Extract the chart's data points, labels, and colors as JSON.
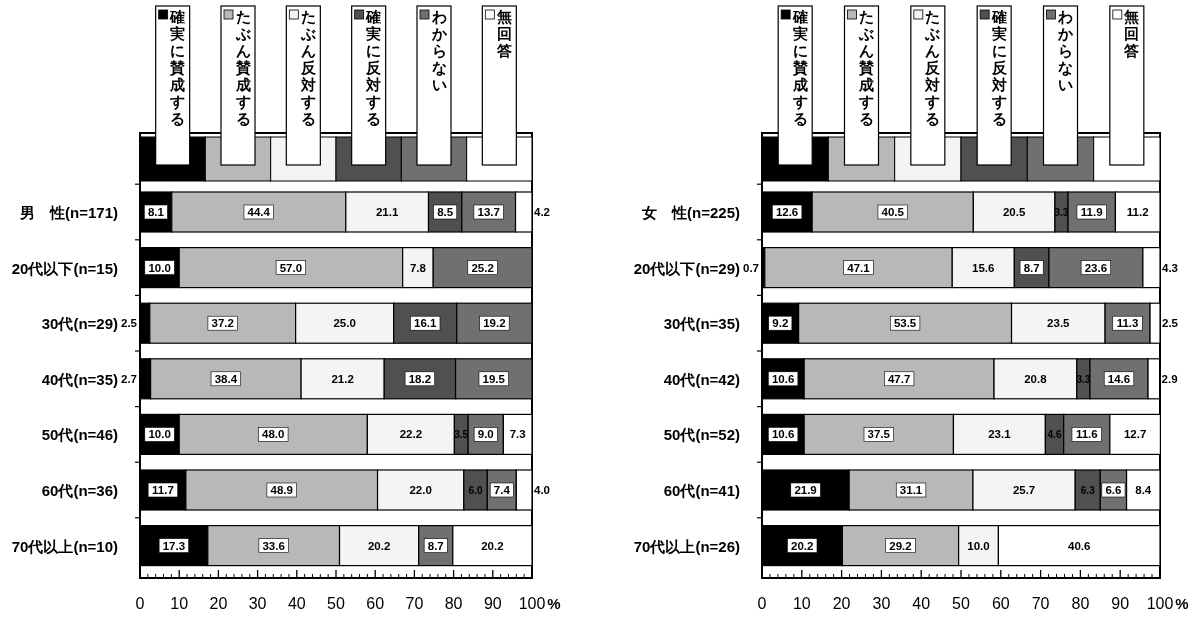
{
  "chart_data": [
    {
      "type": "bar",
      "orientation": "horizontal",
      "stacked": true,
      "legend": "top",
      "xlabel": "%",
      "xlim": [
        0,
        100
      ],
      "xticks": [
        0,
        10,
        20,
        30,
        40,
        50,
        60,
        70,
        80,
        90,
        100
      ],
      "categories": [
        "男　性(n=171)",
        "20代以下(n=15)",
        "30代(n=29)",
        "40代(n=35)",
        "50代(n=46)",
        "60代(n=36)",
        "70代以上(n=10)"
      ],
      "series": [
        {
          "name": "確実に賛成する",
          "color": "#000000",
          "values": [
            8.1,
            10.0,
            2.5,
            2.7,
            10.0,
            11.7,
            17.3
          ],
          "value_labels": [
            "8.1",
            "10.0",
            "2.5",
            "2.7",
            "10.0",
            "11.7",
            "17.3"
          ]
        },
        {
          "name": "たぶん賛成する",
          "color": "#b8b8b8",
          "values": [
            44.4,
            57.0,
            37.2,
            38.4,
            48.0,
            48.9,
            33.6
          ],
          "value_labels": [
            "44.4",
            "57.0",
            "37.2",
            "38.4",
            "48.0",
            "48.9",
            "33.6"
          ]
        },
        {
          "name": "たぶん反対する",
          "color": "#f4f4f4",
          "values": [
            21.1,
            7.8,
            25.0,
            21.2,
            22.2,
            22.0,
            20.2
          ],
          "value_labels": [
            "21.1",
            "7.8",
            "25.0",
            "21.2",
            "22.2",
            "22.0",
            "20.2"
          ]
        },
        {
          "name": "確実に反対する",
          "color": "#505050",
          "values": [
            8.5,
            null,
            16.1,
            18.2,
            3.5,
            6.0,
            null
          ],
          "value_labels": [
            "8.5",
            null,
            "16.1",
            "18.2",
            "3.5",
            "6.0",
            null
          ]
        },
        {
          "name": "わからない",
          "color": "#707070",
          "values": [
            13.7,
            25.2,
            19.2,
            19.5,
            9.0,
            7.4,
            8.7
          ],
          "value_labels": [
            "13.7",
            "25.2",
            "19.2",
            "19.5",
            "9.0",
            "7.4",
            "8.7"
          ]
        },
        {
          "name": "無回答",
          "color": "#ffffff",
          "values": [
            4.2,
            null,
            null,
            null,
            7.3,
            4.0,
            20.2
          ],
          "value_labels": [
            "4.2",
            null,
            null,
            null,
            "7.3",
            "4.0",
            "20.2"
          ]
        }
      ]
    },
    {
      "type": "bar",
      "orientation": "horizontal",
      "stacked": true,
      "legend": "top",
      "xlabel": "%",
      "xlim": [
        0,
        100
      ],
      "xticks": [
        0,
        10,
        20,
        30,
        40,
        50,
        60,
        70,
        80,
        90,
        100
      ],
      "categories": [
        "女　性(n=225)",
        "20代以下(n=29)",
        "30代(n=35)",
        "40代(n=42)",
        "50代(n=52)",
        "60代(n=41)",
        "70代以上(n=26)"
      ],
      "series": [
        {
          "name": "確実に賛成する",
          "color": "#000000",
          "values": [
            12.6,
            0.7,
            9.2,
            10.6,
            10.6,
            21.9,
            20.2
          ],
          "value_labels": [
            "12.6",
            "0.7",
            "9.2",
            "10.6",
            "10.6",
            "21.9",
            "20.2"
          ]
        },
        {
          "name": "たぶん賛成する",
          "color": "#b8b8b8",
          "values": [
            40.5,
            47.1,
            53.5,
            47.7,
            37.5,
            31.1,
            29.2
          ],
          "value_labels": [
            "40.5",
            "47.1",
            "53.5",
            "47.7",
            "37.5",
            "31.1",
            "29.2"
          ]
        },
        {
          "name": "たぶん反対する",
          "color": "#f4f4f4",
          "values": [
            20.5,
            15.6,
            23.5,
            20.8,
            23.1,
            25.7,
            10.0
          ],
          "value_labels": [
            "20.5",
            "15.6",
            "23.5",
            "20.8",
            "23.1",
            "25.7",
            "10.0"
          ]
        },
        {
          "name": "確実に反対する",
          "color": "#505050",
          "values": [
            3.3,
            8.7,
            null,
            3.3,
            4.6,
            6.3,
            null
          ],
          "value_labels": [
            "3.3",
            "8.7",
            null,
            "3.3",
            "4.6",
            "6.3",
            null
          ]
        },
        {
          "name": "わからない",
          "color": "#707070",
          "values": [
            11.9,
            23.6,
            11.3,
            14.6,
            11.6,
            6.6,
            null
          ],
          "value_labels": [
            "11.9",
            "23.6",
            "11.3",
            "14.6",
            "11.6",
            "6.6",
            null
          ]
        },
        {
          "name": "無回答",
          "color": "#ffffff",
          "values": [
            11.2,
            4.3,
            2.5,
            2.9,
            12.7,
            8.4,
            40.6
          ],
          "value_labels": [
            "11.2",
            "4.3",
            "2.5",
            "2.9",
            "12.7",
            "8.4",
            "40.6"
          ]
        }
      ]
    }
  ]
}
